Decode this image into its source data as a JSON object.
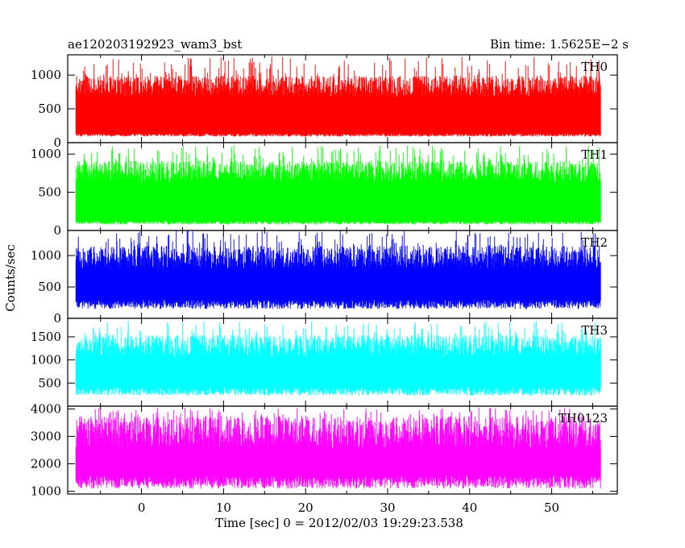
{
  "chart_data": {
    "type": "line",
    "title": "ae120203192923_wam3_bst",
    "subtitle": "Bin time: 1.5625E−2 s",
    "xlabel": "Time [sec] 0 = 2012/02/03 19:29:23.538",
    "ylabel": "Counts/sec",
    "xlim": [
      -9,
      58
    ],
    "x_data_range": [
      -8,
      56
    ],
    "x_ticks": [
      0,
      10,
      20,
      30,
      40,
      50
    ],
    "x_tick_labels": [
      "0",
      "10",
      "20",
      "30",
      "40",
      "50"
    ],
    "panels": [
      {
        "name": "TH0",
        "color": "#ff0000",
        "ylim": [
          0,
          1300
        ],
        "y_ticks": [
          0,
          500,
          1000
        ],
        "y_tick_labels": [
          "0",
          "500",
          "1000"
        ],
        "typical_floor": 90,
        "typical_range": [
          120,
          900
        ],
        "peak": 1280
      },
      {
        "name": "TH1",
        "color": "#00ff00",
        "ylim": [
          0,
          1150
        ],
        "y_ticks": [
          0,
          500,
          1000
        ],
        "y_tick_labels": [
          "0",
          "500",
          "1000"
        ],
        "typical_floor": 80,
        "typical_range": [
          110,
          830
        ],
        "peak": 1120
      },
      {
        "name": "TH2",
        "color": "#0000ff",
        "ylim": [
          0,
          1400
        ],
        "y_ticks": [
          0,
          500,
          1000
        ],
        "y_tick_labels": [
          "0",
          "500",
          "1000"
        ],
        "typical_floor": 150,
        "typical_range": [
          240,
          1050
        ],
        "peak": 1400
      },
      {
        "name": "TH3",
        "color": "#00ffff",
        "ylim": [
          0,
          1900
        ],
        "y_ticks": [
          500,
          1000,
          1500
        ],
        "y_tick_labels": [
          "500",
          "1000",
          "1500"
        ],
        "typical_floor": 230,
        "typical_range": [
          350,
          1400
        ],
        "peak": 1850
      },
      {
        "name": "TH0123",
        "color": "#ff00ff",
        "ylim": [
          900,
          4100
        ],
        "y_ticks": [
          1000,
          2000,
          3000,
          4000
        ],
        "y_tick_labels": [
          "1000",
          "2000",
          "3000",
          "4000"
        ],
        "typical_floor": 1100,
        "typical_range": [
          1400,
          3400
        ],
        "peak": 4050
      }
    ]
  }
}
